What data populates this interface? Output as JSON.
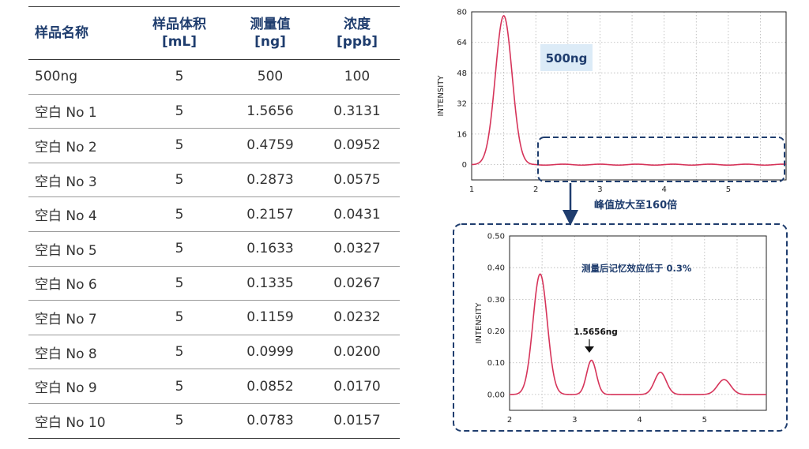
{
  "table": {
    "headers": [
      {
        "line1": "样品名称",
        "line2": ""
      },
      {
        "line1": "样品体积",
        "line2": "[mL]"
      },
      {
        "line1": "测量值",
        "line2": "[ng]"
      },
      {
        "line1": "浓度",
        "line2": "[ppb]"
      }
    ],
    "rows": [
      [
        "500ng",
        "5",
        "500",
        "100"
      ],
      [
        "空白 No 1",
        "5",
        "1.5656",
        "0.3131"
      ],
      [
        "空白 No 2",
        "5",
        "0.4759",
        "0.0952"
      ],
      [
        "空白 No 3",
        "5",
        "0.2873",
        "0.0575"
      ],
      [
        "空白 No 4",
        "5",
        "0.2157",
        "0.0431"
      ],
      [
        "空白 No 5",
        "5",
        "0.1633",
        "0.0327"
      ],
      [
        "空白 No 6",
        "5",
        "0.1335",
        "0.0267"
      ],
      [
        "空白 No 7",
        "5",
        "0.1159",
        "0.0232"
      ],
      [
        "空白 No 8",
        "5",
        "0.0999",
        "0.0200"
      ],
      [
        "空白 No 9",
        "5",
        "0.0852",
        "0.0170"
      ],
      [
        "空白 No 10",
        "5",
        "0.0783",
        "0.0157"
      ]
    ]
  },
  "arrow_label": "峰值放大至160倍",
  "chart_data": [
    {
      "type": "line",
      "ylabel": "INTENSITY",
      "xlim": [
        1,
        5.9
      ],
      "ylim": [
        -8,
        80
      ],
      "yticks": [
        0,
        16,
        32,
        48,
        64,
        80
      ],
      "xticks": [
        1,
        2,
        3,
        4,
        5
      ],
      "annotation": "500ng",
      "grid": true,
      "line_color": "#d6345a",
      "peaks": [
        {
          "x": 1.5,
          "y": 78,
          "width": 0.13
        }
      ],
      "x": [
        1.0,
        1.1,
        1.2,
        1.3,
        1.4,
        1.5,
        1.6,
        1.7,
        1.8,
        2.0,
        2.5,
        3.0,
        3.5,
        4.0,
        4.5,
        5.0,
        5.5,
        5.9
      ],
      "y": [
        0,
        0.5,
        6,
        28,
        63,
        78,
        60,
        25,
        4,
        0,
        0,
        0,
        0,
        0,
        0,
        0,
        0,
        0
      ]
    },
    {
      "type": "line",
      "ylabel": "INTENSITY",
      "xlim": [
        2,
        5.95
      ],
      "ylim": [
        -0.05,
        0.5
      ],
      "yticks": [
        0.0,
        0.1,
        0.2,
        0.3,
        0.4,
        0.5
      ],
      "ytick_labels": [
        "0.00",
        "0.10",
        "0.20",
        "0.30",
        "0.40",
        "0.50"
      ],
      "xticks": [
        2,
        3,
        4,
        5
      ],
      "annotation": "测量后记忆效应低于 0.3%",
      "peak_label": "1.5656ng",
      "grid": true,
      "line_color": "#d6345a",
      "peaks": [
        {
          "x": 2.47,
          "y": 0.38,
          "width": 0.11
        },
        {
          "x": 3.26,
          "y": 0.108,
          "width": 0.075
        },
        {
          "x": 4.32,
          "y": 0.07,
          "width": 0.09
        },
        {
          "x": 5.3,
          "y": 0.047,
          "width": 0.1
        }
      ]
    }
  ]
}
